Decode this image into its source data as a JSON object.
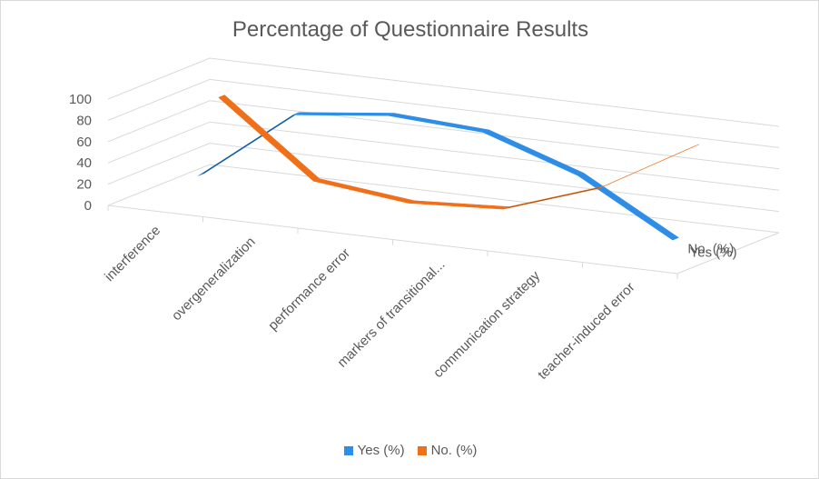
{
  "chart_data": {
    "type": "line",
    "title": "Percentage of Questionnaire Results",
    "categories": [
      "interference",
      "overgeneralization",
      "performance error",
      "markers of transitional...",
      "communication strategy",
      "teacher-induced error"
    ],
    "series": [
      {
        "name": "Yes (%)",
        "values": [
          17,
          85,
          95,
          90,
          60,
          10
        ],
        "color": "#2E8DE6",
        "dark": "#1F4E79"
      },
      {
        "name": "No. (%)",
        "values": [
          83,
          15,
          5,
          10,
          40,
          90
        ],
        "color": "#F0701A",
        "dark": "#9E480E"
      }
    ],
    "y_ticks": [
      "0",
      "20",
      "40",
      "60",
      "80",
      "100"
    ],
    "ylim": [
      0,
      100
    ],
    "depth_labels": [
      "No. (%)",
      "Yes (%)"
    ],
    "gridlines": true,
    "legend_position": "bottom",
    "chart_style": "3d-line"
  }
}
